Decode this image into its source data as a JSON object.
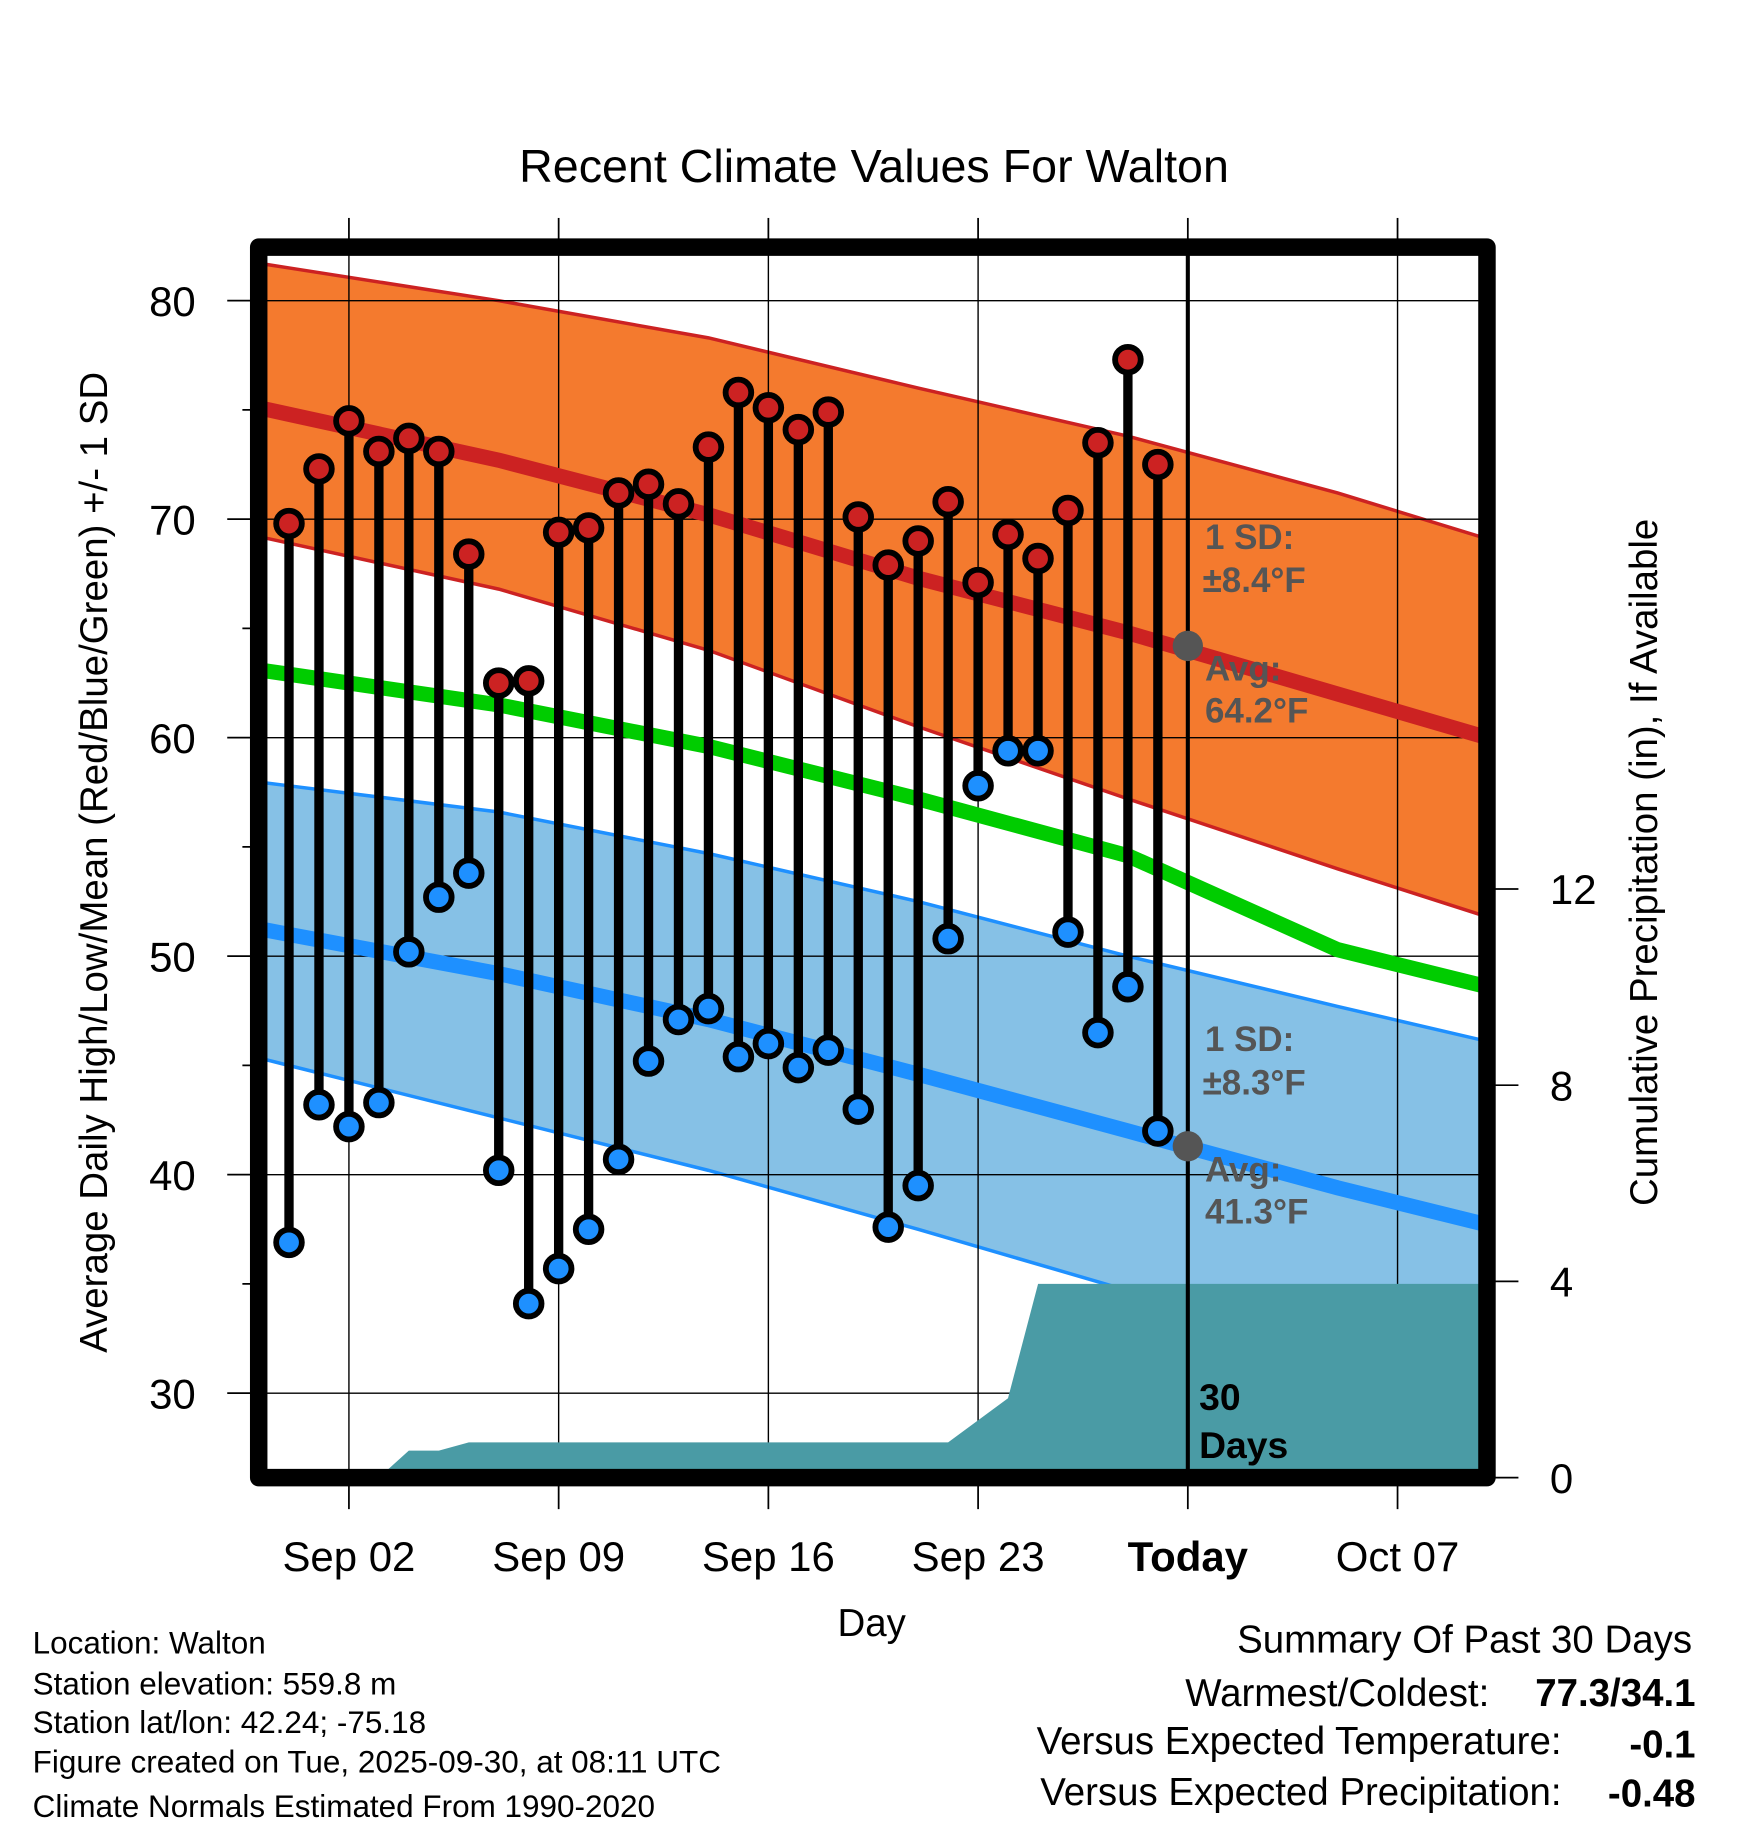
{
  "chart_data": {
    "type": "line",
    "title": "Recent Climate Values For Walton",
    "xlabel": "Day",
    "ylabel": "Average Daily High/Low/Mean (Red/Blue/Green) +/- 1 SD",
    "y2label": "Cumulative Precipitation (in), If Available",
    "ylim": [
      26.6,
      83
    ],
    "y2lim": [
      0,
      16
    ],
    "yticks": [
      30,
      40,
      50,
      60,
      70,
      80
    ],
    "y2ticks": [
      0,
      4,
      8,
      12
    ],
    "xticks": [
      {
        "date": "Sep 02",
        "label": "Sep 02"
      },
      {
        "date": "Sep 09",
        "label": "Sep 09"
      },
      {
        "date": "Sep 16",
        "label": "Sep 16"
      },
      {
        "date": "Sep 23",
        "label": "Sep 23"
      },
      {
        "date": "Sep 30",
        "label": "Today"
      },
      {
        "date": "Oct 07",
        "label": "Oct 07"
      }
    ],
    "today": "Sep 30",
    "grid": true,
    "observed": {
      "dates": [
        "Aug 31",
        "Sep 01",
        "Sep 02",
        "Sep 03",
        "Sep 04",
        "Sep 05",
        "Sep 06",
        "Sep 07",
        "Sep 08",
        "Sep 09",
        "Sep 10",
        "Sep 11",
        "Sep 12",
        "Sep 13",
        "Sep 14",
        "Sep 15",
        "Sep 16",
        "Sep 17",
        "Sep 18",
        "Sep 19",
        "Sep 20",
        "Sep 21",
        "Sep 22",
        "Sep 23",
        "Sep 24",
        "Sep 25",
        "Sep 26",
        "Sep 27",
        "Sep 28",
        "Sep 29"
      ],
      "high": [
        69.8,
        72.3,
        74.5,
        73.1,
        73.7,
        73.1,
        68.4,
        62.5,
        62.6,
        69.4,
        69.6,
        71.2,
        71.6,
        70.7,
        73.3,
        75.8,
        75.1,
        74.1,
        74.9,
        70.1,
        67.9,
        69.0,
        70.8,
        67.1,
        69.3,
        68.2,
        70.4,
        73.5,
        77.3,
        72.5
      ],
      "low": [
        36.9,
        43.2,
        42.2,
        43.3,
        50.2,
        52.7,
        53.8,
        40.2,
        34.1,
        35.7,
        37.5,
        40.7,
        45.2,
        47.1,
        47.6,
        45.4,
        46.0,
        44.9,
        45.7,
        43.0,
        37.6,
        39.5,
        50.8,
        57.8,
        59.4,
        59.4,
        51.1,
        46.5,
        48.6,
        42.0
      ]
    },
    "normals": {
      "dates": [
        "Aug 31",
        "Sep 07",
        "Sep 14",
        "Sep 21",
        "Sep 28",
        "Oct 05",
        "Oct 10"
      ],
      "high_avg": [
        74.8,
        72.7,
        70.2,
        67.3,
        64.8,
        62.0,
        60.0
      ],
      "high_upper": [
        81.5,
        80.0,
        78.3,
        76.0,
        73.8,
        71.2,
        69.1
      ],
      "high_lower": [
        68.9,
        66.8,
        64.0,
        60.5,
        57.2,
        54.0,
        51.8
      ],
      "mean": [
        62.9,
        61.5,
        59.6,
        57.2,
        54.6,
        50.3,
        48.6
      ],
      "low_avg": [
        51.0,
        49.2,
        47.1,
        44.6,
        42.0,
        39.4,
        37.7
      ],
      "low_upper": [
        57.8,
        56.6,
        54.7,
        52.5,
        50.0,
        47.7,
        46.1
      ],
      "low_lower": [
        45.0,
        42.6,
        40.2,
        37.5,
        34.7,
        31.5,
        29.5
      ]
    },
    "precip_cumulative": {
      "dates": [
        "Aug 31",
        "Sep 03",
        "Sep 04",
        "Sep 05",
        "Sep 06",
        "Sep 22",
        "Sep 24",
        "Sep 25",
        "Oct 11"
      ],
      "values": [
        0,
        0,
        0.55,
        0.55,
        0.72,
        0.72,
        1.62,
        3.95,
        3.95
      ]
    },
    "annotations": {
      "high_sd_label": "1 SD:",
      "high_sd_value": "±8.4°F",
      "high_avg_label": "Avg:",
      "high_avg_value": "64.2°F",
      "high_avg_today": 64.2,
      "low_sd_label": "1 SD:",
      "low_sd_value": "±8.3°F",
      "low_avg_label": "Avg:",
      "low_avg_value": "41.3°F",
      "low_avg_today": 41.3,
      "days_num": "30",
      "days_word": "Days"
    },
    "colors": {
      "high_band": "#F47A2E",
      "high_line": "#CC2222",
      "low_band": "#86C1E6",
      "low_line": "#1E90FF",
      "mean_line": "#00CC00",
      "precip": "#4A9BA5",
      "note": "#555555"
    }
  },
  "footer": {
    "location": "Location: Walton",
    "elevation": "Station elevation: 559.8 m",
    "latlon": "Station lat/lon: 42.24; -75.18",
    "created": "Figure created on Tue, 2025-09-30, at 08:11 UTC",
    "normals": "Climate Normals Estimated From 1990-2020"
  },
  "summary": {
    "title": "Summary Of Past 30 Days",
    "warm_cold_label": "Warmest/Coldest:",
    "warm_cold_value": "77.3/34.1",
    "temp_label": "Versus Expected Temperature:",
    "temp_value": "-0.1",
    "temp_color": "#1E90FF",
    "precip_label": "Versus Expected Precipitation:",
    "precip_value": "-0.48",
    "precip_color": "#A0522D"
  }
}
